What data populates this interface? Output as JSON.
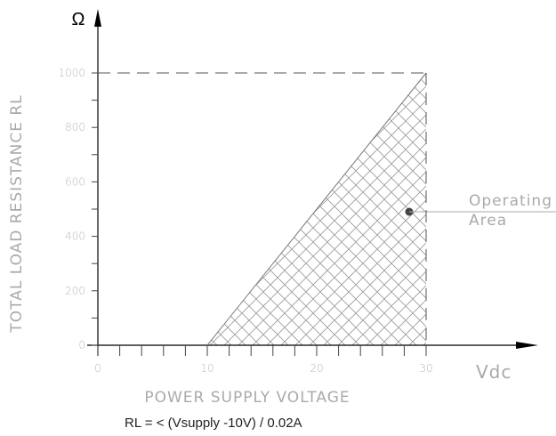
{
  "chart_data": {
    "type": "region",
    "y_symbol": "Ω",
    "x_unit": "Vdc",
    "ylabel": "TOTAL LOAD RESISTANCE RL",
    "xlabel": "POWER SUPPLY VOLTAGE",
    "formula": "RL = < (Vsupply -10V) / 0.02A",
    "annotation": [
      "Operating",
      "Area"
    ],
    "x": [
      10,
      30
    ],
    "values": [
      0,
      1000
    ],
    "xlim": [
      0,
      30
    ],
    "ylim": [
      0,
      1000
    ],
    "xticks": [
      0,
      10,
      20,
      30
    ],
    "yticks": [
      0,
      200,
      400,
      600,
      800,
      1000
    ],
    "xticks_minor": [
      2,
      4,
      6,
      8,
      12,
      14,
      16,
      18,
      22,
      24,
      26,
      28
    ],
    "yticks_minor": [
      100,
      300,
      500,
      700,
      900
    ],
    "color": "#777"
  }
}
